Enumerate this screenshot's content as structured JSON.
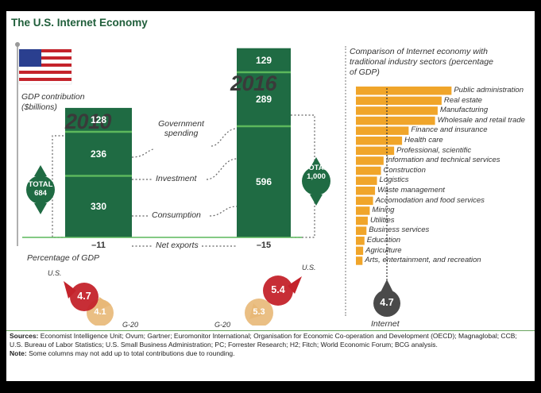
{
  "title": "The U.S. Internet Economy",
  "left_chart": {
    "axis_label": "GDP contribution ($billions)",
    "axis_label_line1": "GDP contribution",
    "axis_label_line2": "($billions)",
    "year_2010": "2010",
    "year_2016": "2016",
    "component_labels": {
      "government": "Government spending",
      "government_line1": "Government",
      "government_line2": "spending",
      "investment": "Investment",
      "consumption": "Consumption",
      "net_exports": "Net exports"
    },
    "total_2010_word": "TOTAL",
    "total_2010_value": "684",
    "total_2016_word": "TOTAL",
    "total_2016_value": "1,000"
  },
  "percentage": {
    "heading": "Percentage of GDP",
    "us_label": "U.S.",
    "g20_label": "G-20",
    "us_2010": "4.7",
    "g20_2010": "4.1",
    "us_2016": "5.4",
    "g20_2016": "5.3"
  },
  "right_chart": {
    "heading_line1": "Comparison of Internet economy with",
    "heading_line2": "traditional industry sectors (percentage",
    "heading_line3": "of GDP)",
    "internet_value": "4.7",
    "internet_label": "Internet"
  },
  "colors": {
    "green": "#1f6b43",
    "green_line": "#5cb85c",
    "red": "#c4232b",
    "peach": "#e8b877",
    "orange": "#f0a52a",
    "dark_gray": "#4a4a4a"
  },
  "chart_data": [
    {
      "type": "bar",
      "stacked": true,
      "categories": [
        "2010",
        "2016"
      ],
      "series": [
        {
          "name": "Consumption",
          "values": [
            330,
            596
          ]
        },
        {
          "name": "Investment",
          "values": [
            236,
            289
          ]
        },
        {
          "name": "Government spending",
          "values": [
            128,
            129
          ]
        },
        {
          "name": "Net exports",
          "values": [
            -11,
            -15
          ]
        }
      ],
      "value_labels": {
        "Consumption": [
          "330",
          "596"
        ],
        "Investment": [
          "236",
          "289"
        ],
        "Government spending": [
          "128",
          "129"
        ],
        "Net exports": [
          "–11",
          "–15"
        ]
      },
      "totals": [
        684,
        1000
      ],
      "ylabel": "GDP contribution ($billions)"
    },
    {
      "type": "bar",
      "orientation": "horizontal",
      "title": "Comparison of Internet economy with traditional industry sectors (percentage of GDP)",
      "categories": [
        "Public administration",
        "Real estate",
        "Manufacturing",
        "Wholesale and retail trade",
        "Finance and insurance",
        "Health care",
        "Professional, scientific",
        "Information and technical services",
        "Construction",
        "Logistics",
        "Waste management",
        "Accomodation and food services",
        "Mining",
        "Utilities",
        "Business services",
        "Education",
        "Agriculture",
        "Arts, entertainment, and recreation"
      ],
      "values": [
        14.5,
        13.0,
        12.4,
        12.0,
        8.0,
        7.0,
        5.8,
        4.2,
        3.8,
        3.2,
        2.9,
        2.6,
        2.1,
        1.8,
        1.6,
        1.3,
        1.1,
        1.0
      ],
      "reference": {
        "name": "Internet",
        "value": 4.7
      }
    }
  ]
}
